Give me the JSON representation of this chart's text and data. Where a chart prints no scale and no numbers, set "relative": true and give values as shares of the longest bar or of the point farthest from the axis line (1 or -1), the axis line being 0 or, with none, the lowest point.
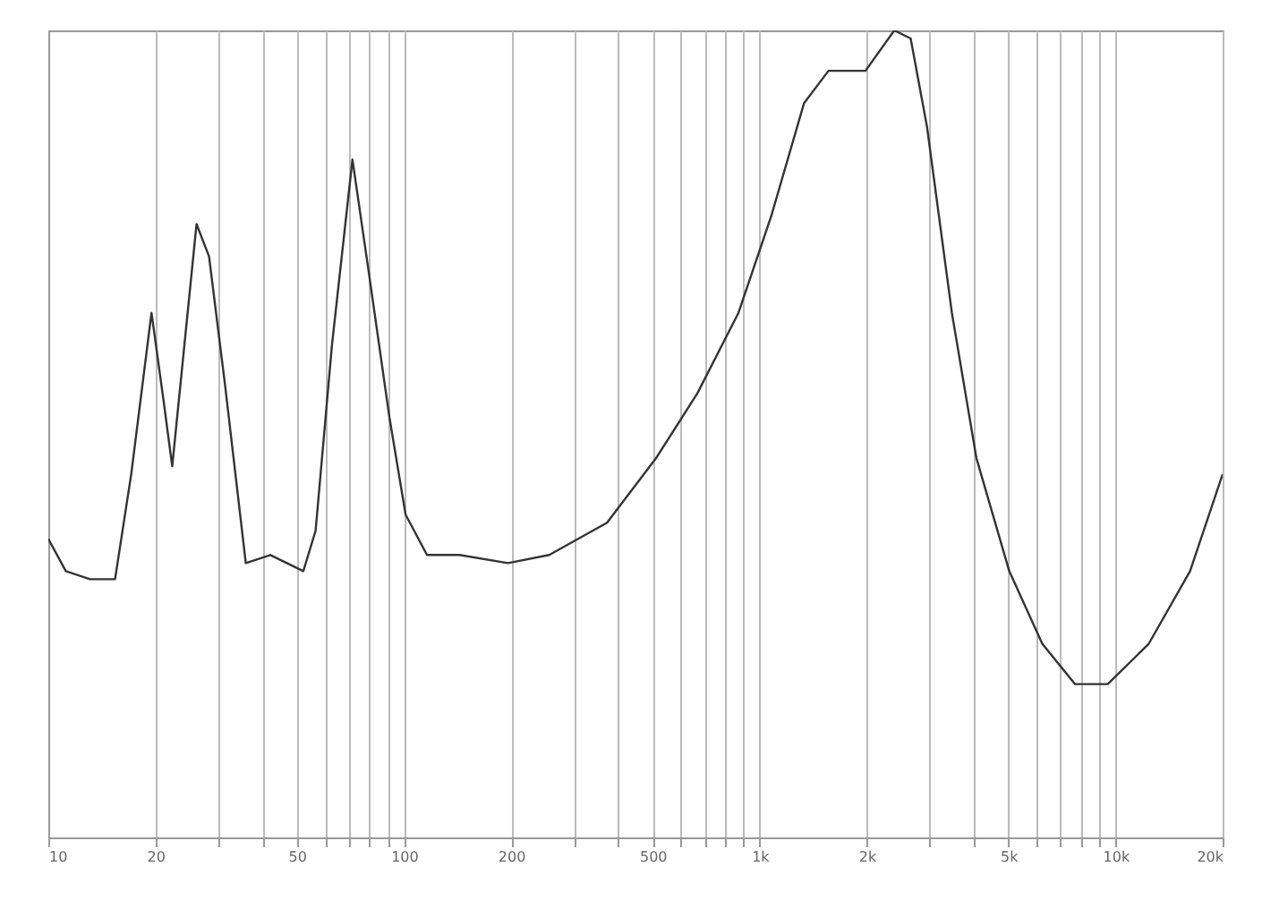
{
  "chart_data": {
    "type": "line",
    "relative": true,
    "log": "x",
    "grid": "x",
    "marker": "none",
    "line_style": "solid",
    "xlim": [
      10,
      20000
    ],
    "xticks": [
      10,
      {
        "value": 20,
        "label": "20"
      },
      {
        "value": 30,
        "label": null
      },
      {
        "value": 40,
        "label": null
      },
      50,
      {
        "value": 60,
        "label": null
      },
      {
        "value": 70,
        "label": null
      },
      {
        "value": 80,
        "label": null
      },
      {
        "value": 90,
        "label": null
      },
      100,
      200,
      {
        "value": 300,
        "label": null
      },
      {
        "value": 400,
        "label": null
      },
      500,
      {
        "value": 600,
        "label": null
      },
      {
        "value": 700,
        "label": null
      },
      {
        "value": 800,
        "label": null
      },
      {
        "value": 900,
        "label": null
      },
      {
        "value": 1000,
        "label": "1k"
      },
      {
        "value": 2000,
        "label": "2k"
      },
      {
        "value": 3000,
        "label": null
      },
      {
        "value": 4000,
        "label": null
      },
      {
        "value": 5000,
        "label": "5k"
      },
      {
        "value": 6000,
        "label": null
      },
      {
        "value": 7000,
        "label": null
      },
      {
        "value": 8000,
        "label": null
      },
      {
        "value": 9000,
        "label": null
      },
      {
        "value": 10000,
        "label": "10k"
      },
      {
        "value": 20000,
        "label": "20k"
      }
    ],
    "series": [
      {
        "color": "#333333",
        "x": [
          10,
          11.2,
          13.1,
          15.4,
          17.1,
          19.5,
          21.1,
          22.3,
          23.5,
          26.1,
          28.3,
          31.4,
          35.9,
          42.1,
          52.1,
          56.4,
          62.7,
          71.6,
          79.6,
          91,
          101,
          116,
          143,
          196,
          256,
          372,
          511,
          667,
          871,
          1077,
          1332,
          1560,
          1982,
          2388,
          2655,
          2953,
          3467,
          4064,
          5026,
          6223,
          7691,
          9510,
          12400,
          16200,
          20000
        ],
        "values": [
          0.37,
          0.33,
          0.32,
          0.32,
          0.45,
          0.65,
          0.54,
          0.46,
          0.56,
          0.76,
          0.72,
          0.56,
          0.34,
          0.35,
          0.33,
          0.38,
          0.61,
          0.84,
          0.7,
          0.52,
          0.4,
          0.35,
          0.35,
          0.34,
          0.35,
          0.39,
          0.47,
          0.55,
          0.65,
          0.77,
          0.91,
          0.95,
          0.95,
          1.0,
          0.99,
          0.88,
          0.65,
          0.47,
          0.33,
          0.24,
          0.19,
          0.19,
          0.24,
          0.33,
          0.45
        ]
      }
    ]
  }
}
